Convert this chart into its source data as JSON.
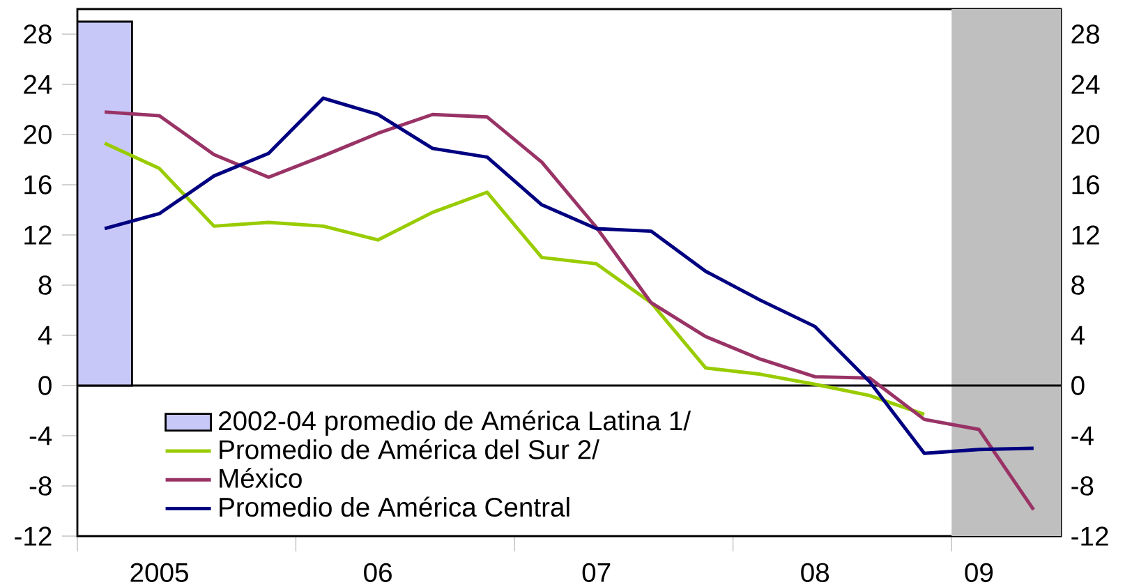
{
  "chart_data": {
    "type": "line",
    "categories": [
      null,
      "2005",
      null,
      null,
      null,
      "06",
      null,
      null,
      null,
      "07",
      null,
      null,
      null,
      "08",
      null,
      null,
      "09",
      null
    ],
    "series": [
      {
        "name": "2002-04 promedio de América Latina 1/",
        "type": "bar",
        "color": "#c8c8f8",
        "values": [
          29,
          null,
          null,
          null,
          null,
          null,
          null,
          null,
          null,
          null,
          null,
          null,
          null,
          null,
          null,
          null,
          null,
          null
        ]
      },
      {
        "name": "Promedio de América del Sur 2/",
        "color": "#99cc00",
        "values": [
          19.3,
          17.3,
          12.7,
          13.0,
          12.7,
          11.6,
          13.8,
          15.4,
          10.2,
          9.7,
          6.6,
          1.4,
          0.9,
          0.1,
          -0.8,
          -2.3,
          null,
          null
        ]
      },
      {
        "name": "México",
        "color": "#993366",
        "values": [
          21.8,
          21.5,
          18.4,
          16.6,
          18.3,
          20.1,
          21.6,
          21.4,
          17.8,
          12.6,
          6.6,
          3.9,
          2.1,
          0.7,
          0.6,
          -2.7,
          -3.5,
          -9.9
        ]
      },
      {
        "name": "Promedio de América Central",
        "color": "#000080",
        "values": [
          12.5,
          13.7,
          16.7,
          18.5,
          22.9,
          21.6,
          18.9,
          18.2,
          14.4,
          12.5,
          12.3,
          9.1,
          6.8,
          4.7,
          0.3,
          -5.4,
          -5.1,
          -5.0
        ]
      }
    ],
    "ylim": [
      -12,
      30
    ],
    "yticks": [
      -12,
      -8,
      -4,
      0,
      4,
      8,
      12,
      16,
      20,
      24,
      28
    ],
    "y2lim": [
      -12,
      30
    ],
    "y2ticks": [
      -12,
      -8,
      -4,
      0,
      4,
      8,
      12,
      16,
      20,
      24,
      28
    ],
    "ref_lines": [
      {
        "axis": "y",
        "value": 0,
        "color": "#000000"
      }
    ],
    "legend": "bottom left",
    "grid": false,
    "marker": "none",
    "line_style": "solid"
  }
}
